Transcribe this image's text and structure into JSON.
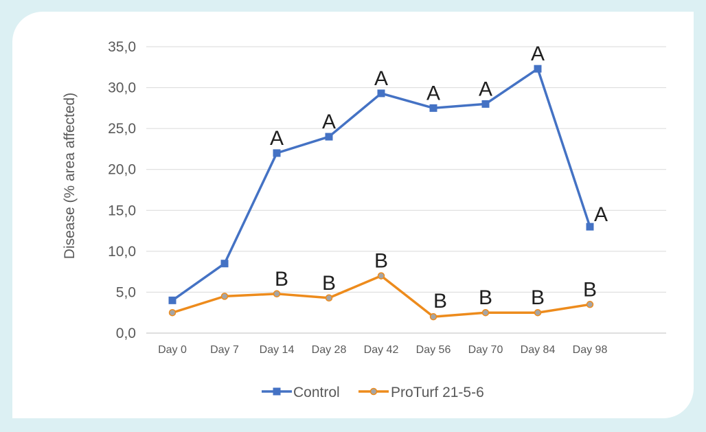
{
  "chart_data": {
    "type": "line",
    "title": "",
    "xlabel": "",
    "ylabel": "Disease (% area affected)",
    "categories": [
      "Day 0",
      "Day 7",
      "Day 14",
      "Day 28",
      "Day 42",
      "Day 56",
      "Day 70",
      "Day 84",
      "Day 98"
    ],
    "ylim": [
      0,
      35
    ],
    "y_ticks": [
      "0,0",
      "5,0",
      "10,0",
      "15,0",
      "20,0",
      "25,0",
      "30,0",
      "35,0"
    ],
    "grid": true,
    "legend_position": "bottom",
    "series": [
      {
        "name": "Control",
        "color": "#4472c4",
        "marker": "square",
        "values": [
          4.0,
          8.5,
          22.0,
          24.0,
          29.3,
          27.5,
          28.0,
          32.3,
          13.0
        ],
        "labels": [
          "",
          "",
          "A",
          "A",
          "A",
          "A",
          "A",
          "A",
          "A"
        ]
      },
      {
        "name": "ProTurf 21-5-6",
        "color": "#ed8b1c",
        "marker": "circle",
        "marker_fill": "#a5a5a5",
        "values": [
          2.5,
          4.5,
          4.8,
          4.3,
          7.0,
          2.0,
          2.5,
          2.5,
          3.5
        ],
        "labels": [
          "",
          "",
          "B",
          "B",
          "B",
          "B",
          "B",
          "B",
          "B"
        ]
      }
    ]
  }
}
